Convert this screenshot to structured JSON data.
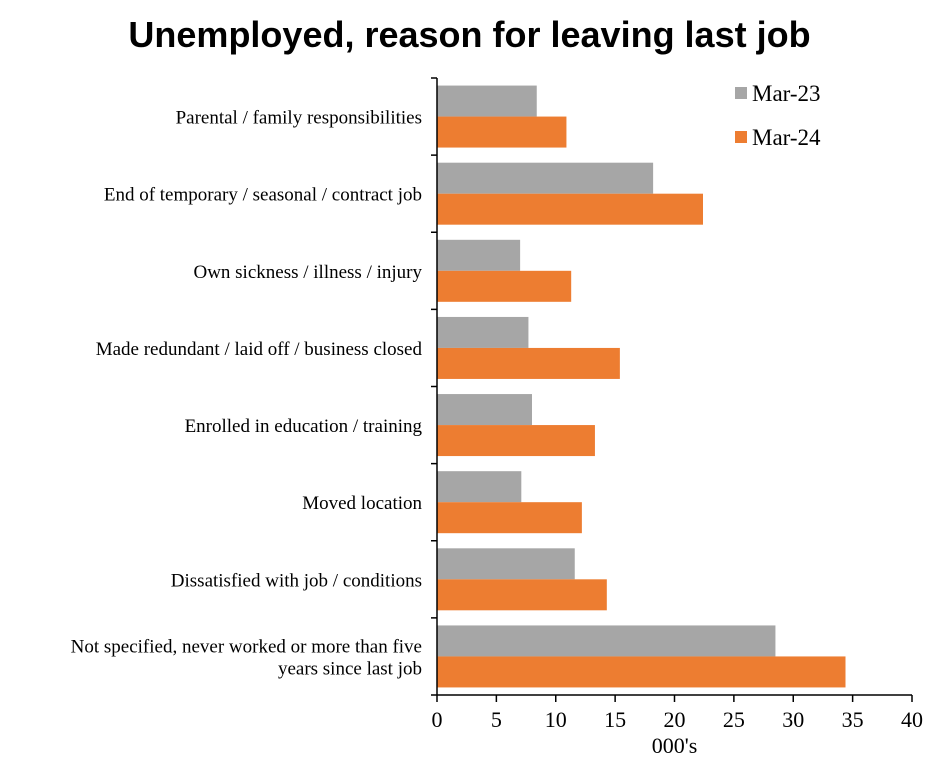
{
  "chart_data": {
    "type": "bar",
    "orientation": "horizontal",
    "title": "Unemployed, reason for leaving last job",
    "xlabel": "000's",
    "ylabel": "",
    "xlim": [
      0,
      40
    ],
    "x_ticks": [
      0,
      5,
      10,
      15,
      20,
      25,
      30,
      35,
      40
    ],
    "grid": false,
    "legend_position": "top-right",
    "categories": [
      [
        "Parental / family responsibilities"
      ],
      [
        "End of temporary / seasonal / contract job"
      ],
      [
        "Own sickness / illness / injury"
      ],
      [
        "Made redundant / laid off / business closed"
      ],
      [
        "Enrolled in education / training"
      ],
      [
        "Moved location"
      ],
      [
        "Dissatisfied with job / conditions"
      ],
      [
        "Not specified, never worked or more than five",
        "years since last job"
      ]
    ],
    "series": [
      {
        "name": "Mar-23",
        "color": "#a6a6a6",
        "values": [
          8.4,
          18.2,
          7.0,
          7.7,
          8.0,
          7.1,
          11.6,
          28.5
        ]
      },
      {
        "name": "Mar-24",
        "color": "#ed7d31",
        "values": [
          10.9,
          22.4,
          11.3,
          15.4,
          13.3,
          12.2,
          14.3,
          34.4
        ]
      }
    ]
  }
}
